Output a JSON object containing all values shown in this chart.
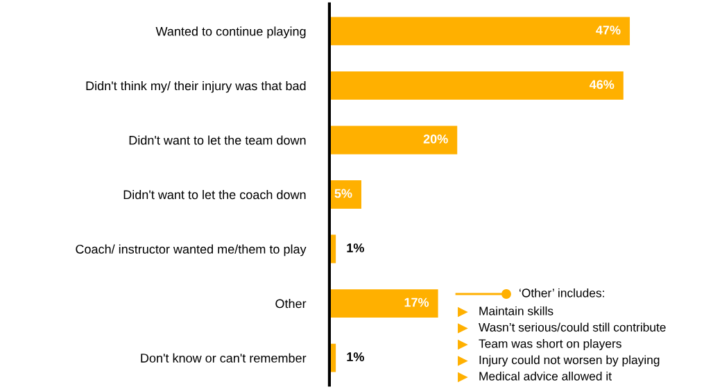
{
  "chart_data": {
    "type": "bar",
    "orientation": "horizontal",
    "categories": [
      "Wanted to continue playing",
      "Didn't think my/ their injury was that bad",
      "Didn't want to let the team down",
      "Didn't want to let the coach down",
      "Coach/ instructor wanted me/them to play",
      "Other",
      "Don't know or can't remember"
    ],
    "values": [
      47,
      46,
      20,
      5,
      1,
      17,
      1
    ],
    "color": "#ffb000",
    "data_labels": true,
    "value_labels": [
      "47%",
      "46%",
      "20%",
      "5%",
      "1%",
      "17%",
      "1%"
    ],
    "annotations": [
      "‘Other’ includes:",
      "Maintain skills",
      "Wasn’t serious/could still contribute",
      "Team was short on players",
      "Injury could not worsen by playing",
      "Medical advice allowed it"
    ],
    "grid": false,
    "legend": false
  }
}
